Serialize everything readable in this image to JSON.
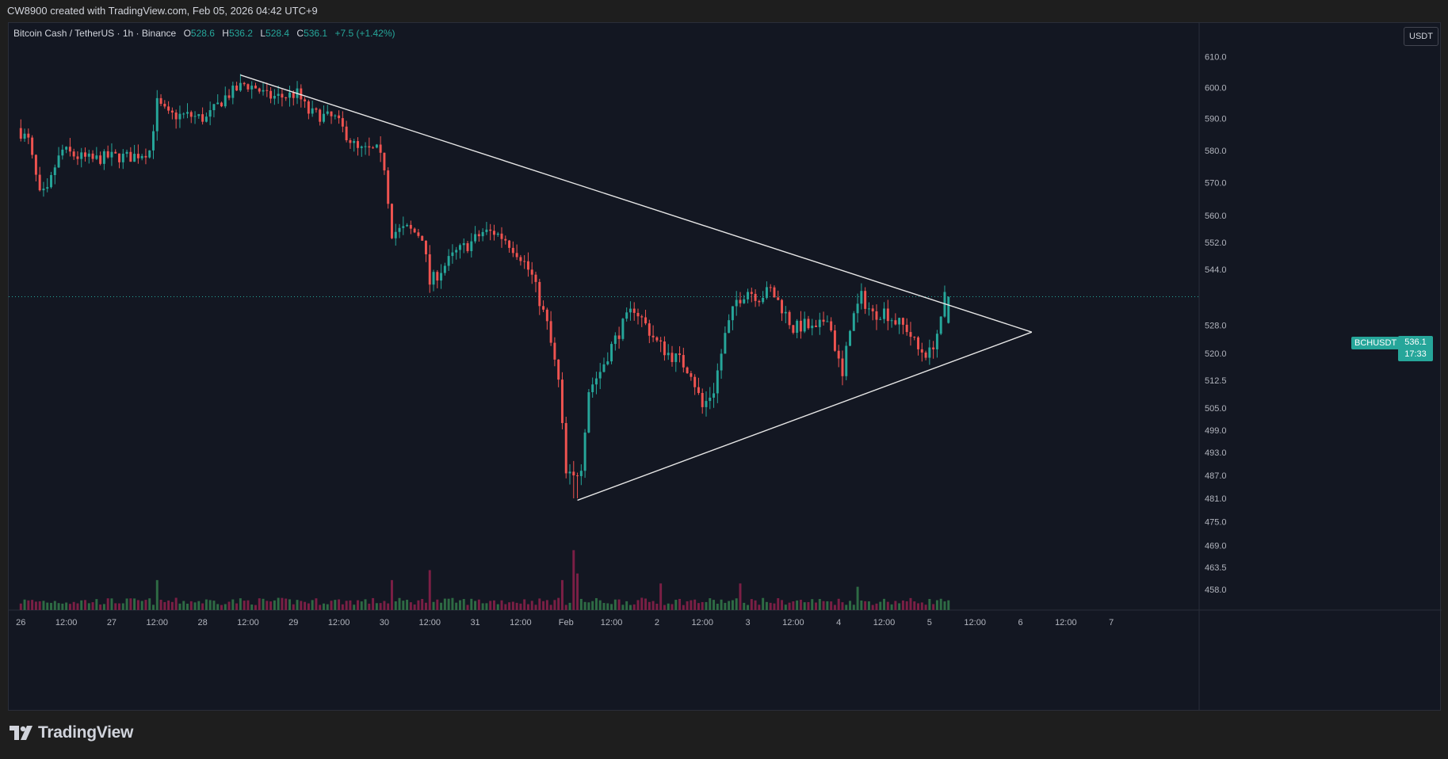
{
  "header": {
    "attribution": "CW8900 created with TradingView.com, Feb 05, 2026 04:42 UTC+9"
  },
  "legend": {
    "symbol": "Bitcoin Cash / TetherUS · 1h · Binance",
    "o_label": "O",
    "o_value": "528.6",
    "h_label": "H",
    "h_value": "536.2",
    "l_label": "L",
    "l_value": "528.4",
    "c_label": "C",
    "c_value": "536.1",
    "change": "+7.5 (+1.42%)"
  },
  "price_scale": {
    "currency": "USDT",
    "symbol_tag": "BCHUSDT",
    "last_price": "536.1",
    "countdown": "17:33"
  },
  "footer": {
    "brand": "TradingView"
  },
  "colors": {
    "background": "#131722",
    "up": "#26a69a",
    "down": "#ef5350",
    "volume_up": "#2e6b44",
    "volume_down": "#7b1f45",
    "trendline": "#e6e6e6",
    "axis_text": "#b2b5be"
  },
  "chart_data": {
    "type": "candlestick",
    "symbol": "BCHUSDT",
    "interval": "1h",
    "y_scale": "log",
    "ylim": [
      455,
      618
    ],
    "y_ticks": [
      {
        "label": "610.0",
        "value": 610
      },
      {
        "label": "600.0",
        "value": 600
      },
      {
        "label": "590.0",
        "value": 590
      },
      {
        "label": "580.0",
        "value": 580
      },
      {
        "label": "570.0",
        "value": 570
      },
      {
        "label": "560.0",
        "value": 560
      },
      {
        "label": "552.0",
        "value": 552
      },
      {
        "label": "544.0",
        "value": 544
      },
      {
        "label": "528.0",
        "value": 528
      },
      {
        "label": "520.0",
        "value": 520
      },
      {
        "label": "512.5",
        "value": 512.5
      },
      {
        "label": "505.0",
        "value": 505
      },
      {
        "label": "499.0",
        "value": 499
      },
      {
        "label": "493.0",
        "value": 493
      },
      {
        "label": "487.0",
        "value": 487
      },
      {
        "label": "481.0",
        "value": 481
      },
      {
        "label": "475.0",
        "value": 475
      },
      {
        "label": "469.0",
        "value": 469
      },
      {
        "label": "463.5",
        "value": 463.5
      },
      {
        "label": "458.0",
        "value": 458
      }
    ],
    "x_ticks": [
      {
        "label": "26",
        "hour": 0
      },
      {
        "label": "12:00",
        "hour": 12
      },
      {
        "label": "27",
        "hour": 24
      },
      {
        "label": "12:00",
        "hour": 36
      },
      {
        "label": "28",
        "hour": 48
      },
      {
        "label": "12:00",
        "hour": 60
      },
      {
        "label": "29",
        "hour": 72
      },
      {
        "label": "12:00",
        "hour": 84
      },
      {
        "label": "30",
        "hour": 96
      },
      {
        "label": "12:00",
        "hour": 108
      },
      {
        "label": "31",
        "hour": 120
      },
      {
        "label": "12:00",
        "hour": 132
      },
      {
        "label": "Feb",
        "hour": 144
      },
      {
        "label": "12:00",
        "hour": 156
      },
      {
        "label": "2",
        "hour": 168
      },
      {
        "label": "12:00",
        "hour": 180
      },
      {
        "label": "3",
        "hour": 192
      },
      {
        "label": "12:00",
        "hour": 204
      },
      {
        "label": "4",
        "hour": 216
      },
      {
        "label": "12:00",
        "hour": 228
      },
      {
        "label": "5",
        "hour": 240
      },
      {
        "label": "12:00",
        "hour": 252
      },
      {
        "label": "6",
        "hour": 264
      },
      {
        "label": "12:00",
        "hour": 276
      },
      {
        "label": "7",
        "hour": 288
      }
    ],
    "x_range_hours": [
      -3.2,
      311.2
    ],
    "last_price": 536.1,
    "price_path": [
      [
        0,
        587
      ],
      [
        3,
        583
      ],
      [
        6,
        566
      ],
      [
        8,
        567
      ],
      [
        10,
        575
      ],
      [
        12,
        580
      ],
      [
        16,
        578
      ],
      [
        20,
        577
      ],
      [
        24,
        578
      ],
      [
        30,
        578
      ],
      [
        35,
        580
      ],
      [
        37,
        595
      ],
      [
        40,
        591
      ],
      [
        45,
        591
      ],
      [
        50,
        590
      ],
      [
        55,
        597
      ],
      [
        60,
        601
      ],
      [
        63,
        600
      ],
      [
        66,
        597
      ],
      [
        70,
        597
      ],
      [
        74,
        598
      ],
      [
        77,
        592
      ],
      [
        80,
        591
      ],
      [
        84,
        590
      ],
      [
        87,
        585
      ],
      [
        90,
        580
      ],
      [
        95,
        580
      ],
      [
        97,
        575
      ],
      [
        99,
        555
      ],
      [
        103,
        556
      ],
      [
        107,
        554
      ],
      [
        109,
        540
      ],
      [
        112,
        544
      ],
      [
        116,
        549
      ],
      [
        120,
        552
      ],
      [
        123,
        555
      ],
      [
        126,
        555
      ],
      [
        129,
        553
      ],
      [
        133,
        548
      ],
      [
        136,
        542
      ],
      [
        140,
        528
      ],
      [
        143,
        512
      ],
      [
        145,
        487
      ],
      [
        147,
        486
      ],
      [
        149,
        490
      ],
      [
        151,
        510
      ],
      [
        154,
        515
      ],
      [
        157,
        522
      ],
      [
        160,
        528
      ],
      [
        163,
        533
      ],
      [
        166,
        528
      ],
      [
        169,
        523
      ],
      [
        172,
        520
      ],
      [
        175,
        518
      ],
      [
        178,
        515
      ],
      [
        181,
        505
      ],
      [
        184,
        510
      ],
      [
        187,
        525
      ],
      [
        190,
        535
      ],
      [
        193,
        538
      ],
      [
        196,
        536
      ],
      [
        199,
        538
      ],
      [
        202,
        533
      ],
      [
        205,
        527
      ],
      [
        208,
        528
      ],
      [
        211,
        526
      ],
      [
        214,
        531
      ],
      [
        216,
        522
      ],
      [
        218,
        513
      ],
      [
        220,
        528
      ],
      [
        223,
        536
      ],
      [
        226,
        531
      ],
      [
        229,
        532
      ],
      [
        232,
        529
      ],
      [
        235,
        527
      ],
      [
        238,
        521
      ],
      [
        241,
        520
      ],
      [
        244,
        528.6
      ],
      [
        245,
        536.1
      ]
    ],
    "volume_spikes": [
      {
        "hour": 36,
        "volume": 9
      },
      {
        "hour": 98,
        "volume": 9
      },
      {
        "hour": 108,
        "volume": 12
      },
      {
        "hour": 143,
        "volume": 9
      },
      {
        "hour": 146,
        "volume": 18
      },
      {
        "hour": 147,
        "volume": 11
      },
      {
        "hour": 169,
        "volume": 8
      },
      {
        "hour": 190,
        "volume": 8
      },
      {
        "hour": 221,
        "volume": 7
      }
    ],
    "trendlines": [
      {
        "name": "upper",
        "from": {
          "hour": 58,
          "price": 604
        },
        "to": {
          "hour": 267,
          "price": 526
        }
      },
      {
        "name": "lower",
        "from": {
          "hour": 147,
          "price": 480.5
        },
        "to": {
          "hour": 267,
          "price": 526
        }
      }
    ]
  }
}
